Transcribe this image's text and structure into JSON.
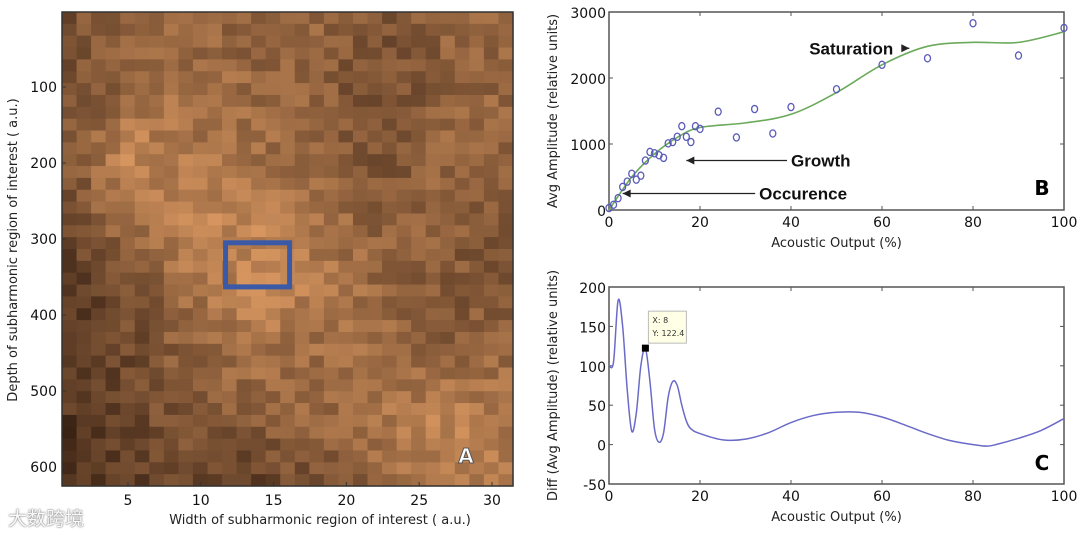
{
  "watermark": "大数跨境",
  "chart_data": [
    {
      "panel": "A",
      "type": "heatmap",
      "xlabel": "Width of subharmonic region of interest ( a.u.)",
      "ylabel": "Depth of subharmonic region of interest ( a.u.)",
      "xlim": [
        0.5,
        31.5
      ],
      "ylim": [
        625,
        0
      ],
      "xticks": [
        "5",
        "10",
        "15",
        "20",
        "25",
        "30"
      ],
      "yticks": [
        "100",
        "200",
        "300",
        "400",
        "500",
        "600"
      ],
      "colormap": [
        "#3a2214",
        "#f5ac6e"
      ],
      "coarse_intensity_grid": [
        [
          0.35,
          0.45,
          0.5,
          0.45,
          0.5,
          0.35,
          0.45,
          0.5
        ],
        [
          0.3,
          0.5,
          0.55,
          0.5,
          0.45,
          0.3,
          0.45,
          0.5
        ],
        [
          0.4,
          0.75,
          0.6,
          0.55,
          0.5,
          0.35,
          0.5,
          0.45
        ],
        [
          0.3,
          0.6,
          0.75,
          0.7,
          0.55,
          0.45,
          0.45,
          0.4
        ],
        [
          0.2,
          0.35,
          0.6,
          0.75,
          0.65,
          0.5,
          0.4,
          0.35
        ],
        [
          0.15,
          0.3,
          0.5,
          0.6,
          0.55,
          0.55,
          0.45,
          0.5
        ],
        [
          0.15,
          0.3,
          0.35,
          0.45,
          0.5,
          0.6,
          0.7,
          0.65
        ],
        [
          0.1,
          0.2,
          0.3,
          0.25,
          0.35,
          0.5,
          0.65,
          0.6
        ]
      ],
      "roi_box": {
        "x": [
          11.7,
          16.1
        ],
        "y": [
          305,
          363
        ],
        "color": "#3a5aa8"
      }
    },
    {
      "panel": "B",
      "type": "scatter",
      "xlabel": "Acoustic Output (%)",
      "ylabel": "Avg Amplitude (relative units)",
      "xlim": [
        0,
        100
      ],
      "ylim": [
        0,
        3000
      ],
      "xticks": [
        "0",
        "20",
        "40",
        "60",
        "80",
        "100"
      ],
      "yticks": [
        "0",
        "1000",
        "2000",
        "3000"
      ],
      "points": [
        [
          0,
          30
        ],
        [
          1,
          80
        ],
        [
          2,
          180
        ],
        [
          3,
          350
        ],
        [
          4,
          430
        ],
        [
          5,
          550
        ],
        [
          6,
          460
        ],
        [
          7,
          520
        ],
        [
          8,
          750
        ],
        [
          9,
          880
        ],
        [
          10,
          860
        ],
        [
          11,
          830
        ],
        [
          12,
          790
        ],
        [
          13,
          1010
        ],
        [
          14,
          1030
        ],
        [
          15,
          1110
        ],
        [
          16,
          1270
        ],
        [
          17,
          1110
        ],
        [
          18,
          1030
        ],
        [
          19,
          1270
        ],
        [
          20,
          1230
        ],
        [
          24,
          1490
        ],
        [
          28,
          1100
        ],
        [
          32,
          1530
        ],
        [
          36,
          1160
        ],
        [
          40,
          1560
        ],
        [
          50,
          1830
        ],
        [
          60,
          2200
        ],
        [
          70,
          2300
        ],
        [
          80,
          2830
        ],
        [
          90,
          2340
        ],
        [
          100,
          2760
        ]
      ],
      "fit": [
        [
          0,
          0
        ],
        [
          5,
          500
        ],
        [
          10,
          850
        ],
        [
          15,
          1100
        ],
        [
          20,
          1250
        ],
        [
          30,
          1320
        ],
        [
          40,
          1450
        ],
        [
          50,
          1780
        ],
        [
          60,
          2200
        ],
        [
          70,
          2480
        ],
        [
          80,
          2540
        ],
        [
          90,
          2540
        ],
        [
          100,
          2700
        ]
      ],
      "point_color": "#5a5ab8",
      "fit_color": "#6aaa5a",
      "annotations": [
        {
          "text": "Saturation",
          "label_at": [
            3000,
            0
          ],
          "tx": 44,
          "ty": 2450,
          "ax": 66,
          "ay": 2450
        },
        {
          "text": "Growth",
          "tx": 40,
          "ty": 750,
          "ax": 17,
          "ay": 750
        },
        {
          "text": "Occurence",
          "tx": 33,
          "ty": 250,
          "ax": 3,
          "ay": 250
        }
      ]
    },
    {
      "panel": "C",
      "type": "line",
      "xlabel": "Acoustic Output (%)",
      "ylabel": "Diff (Avg Amplitude) (relative units)",
      "xlim": [
        0,
        100
      ],
      "ylim": [
        -50,
        200
      ],
      "xticks": [
        "0",
        "20",
        "40",
        "60",
        "80",
        "100"
      ],
      "yticks": [
        "-50",
        "0",
        "50",
        "100",
        "150",
        "200"
      ],
      "line_color": "#6a6ac8",
      "series": [
        [
          0,
          100
        ],
        [
          1,
          105
        ],
        [
          2,
          183
        ],
        [
          3,
          150
        ],
        [
          4,
          70
        ],
        [
          5,
          17
        ],
        [
          6,
          40
        ],
        [
          7,
          100
        ],
        [
          8,
          122
        ],
        [
          9,
          80
        ],
        [
          10,
          20
        ],
        [
          11,
          3
        ],
        [
          12,
          15
        ],
        [
          13,
          60
        ],
        [
          14,
          80
        ],
        [
          15,
          75
        ],
        [
          16,
          50
        ],
        [
          17,
          30
        ],
        [
          18,
          20
        ],
        [
          20,
          14
        ],
        [
          25,
          6
        ],
        [
          30,
          7
        ],
        [
          35,
          15
        ],
        [
          40,
          28
        ],
        [
          45,
          37
        ],
        [
          50,
          41
        ],
        [
          55,
          41
        ],
        [
          60,
          35
        ],
        [
          65,
          25
        ],
        [
          70,
          14
        ],
        [
          75,
          5
        ],
        [
          80,
          0
        ],
        [
          83,
          -2
        ],
        [
          85,
          0
        ],
        [
          90,
          8
        ],
        [
          95,
          18
        ],
        [
          100,
          33
        ]
      ],
      "datatip": {
        "x": 8,
        "y": 122.4,
        "x_label": "X: 8",
        "y_label": "Y: 122.4"
      }
    }
  ]
}
